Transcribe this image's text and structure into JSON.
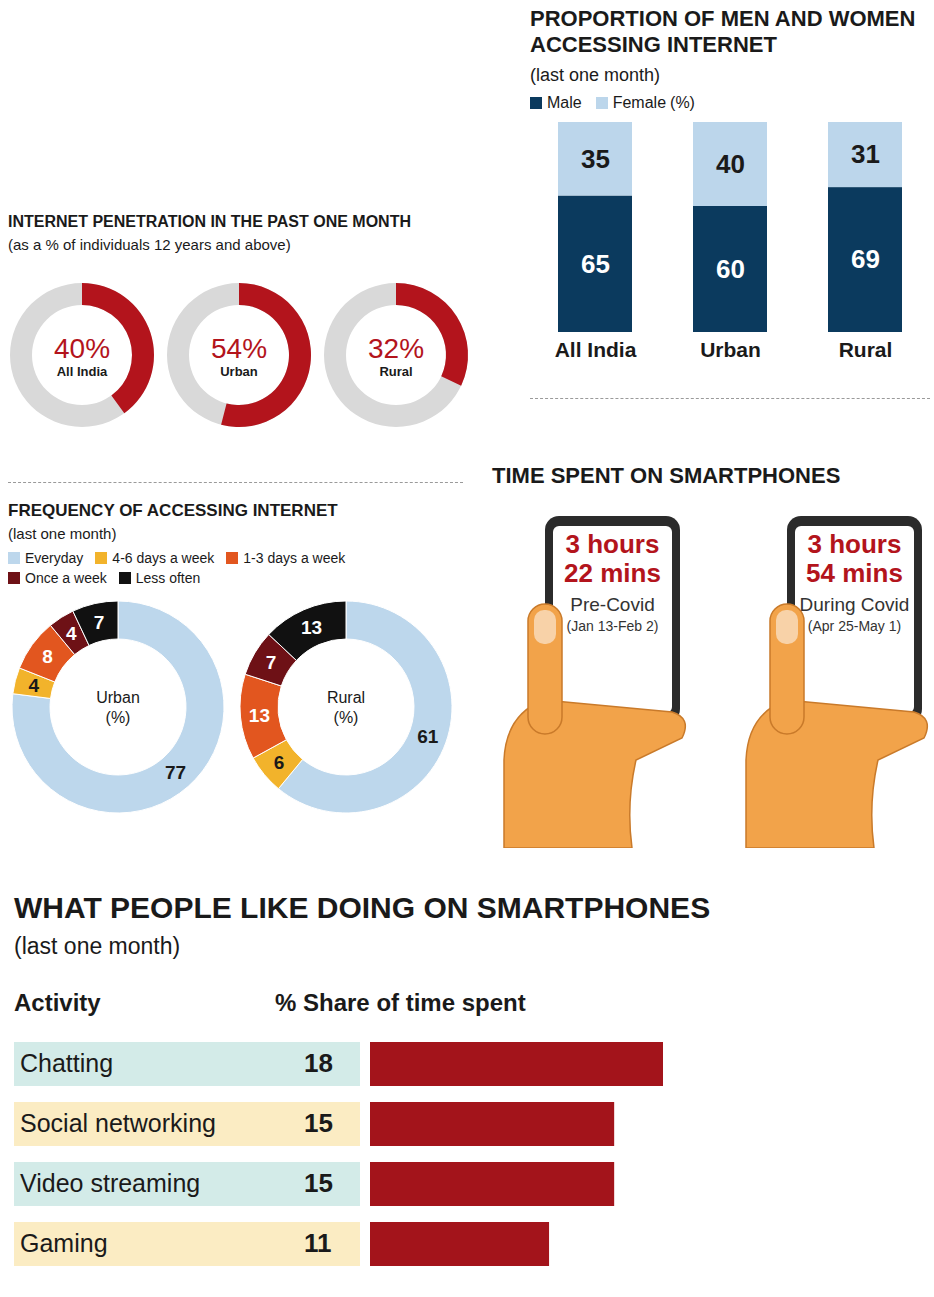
{
  "chart_data": [
    {
      "type": "donut",
      "title": "INTERNET PENETRATION IN THE PAST ONE MONTH",
      "subtitle": "(as a % of individuals 12 years and above)",
      "categories": [
        "All India",
        "Urban",
        "Rural"
      ],
      "values": [
        40,
        54,
        32
      ],
      "value_labels": [
        "40%",
        "54%",
        "32%"
      ],
      "color": "#b3141c",
      "data_labels": true
    },
    {
      "type": "bar",
      "stacked": true,
      "title": "PROPORTION OF MEN AND WOMEN ACCESSING INTERNET",
      "subtitle": "(last one month)",
      "legend_note": "(%)",
      "categories": [
        "All India",
        "Urban",
        "Rural"
      ],
      "series": [
        {
          "name": "Male",
          "color": "#0b3a5e",
          "values": [
            65,
            60,
            69
          ]
        },
        {
          "name": "Female",
          "color": "#bcd6eb",
          "values": [
            35,
            40,
            31
          ]
        }
      ],
      "ylim": [
        0,
        100
      ],
      "tick_labels": "x",
      "legend": "top",
      "data_labels": true
    },
    {
      "type": "donut",
      "title": "FREQUENCY OF ACCESSING INTERNET",
      "subtitle": "(last one month)",
      "center_note": "(%)",
      "categories": [
        "Everyday",
        "4-6 days a week",
        "1-3 days a week",
        "Once a week",
        "Less often"
      ],
      "colors": [
        "#bdd7ec",
        "#f2b32b",
        "#e2561f",
        "#6e1116",
        "#111111"
      ],
      "series": [
        {
          "name": "Urban",
          "values": [
            77,
            4,
            8,
            4,
            7
          ]
        },
        {
          "name": "Rural",
          "values": [
            61,
            6,
            13,
            7,
            13
          ]
        }
      ],
      "legend": "top",
      "data_labels": true
    },
    {
      "type": "text",
      "title": "TIME SPENT ON SMARTPHONES",
      "items": [
        {
          "time": "3 hours 22 mins",
          "label": "Pre-Covid",
          "period": "(Jan 13-Feb 2)"
        },
        {
          "time": "3 hours 54 mins",
          "label": "During Covid",
          "period": "(Apr 25-May 1)"
        }
      ]
    },
    {
      "type": "bar",
      "orientation": "horizontal",
      "title": "WHAT PEOPLE LIKE DOING ON SMARTPHONES",
      "subtitle": "(last one month)",
      "category_header": "Activity",
      "value_header": "% Share of time spent",
      "categories": [
        "Chatting",
        "Social networking",
        "Video streaming",
        "Gaming"
      ],
      "values": [
        18,
        15,
        15,
        11
      ],
      "color": "#a3141b",
      "xlim": [
        0,
        18
      ],
      "tick_labels": false,
      "data_labels": true
    }
  ]
}
